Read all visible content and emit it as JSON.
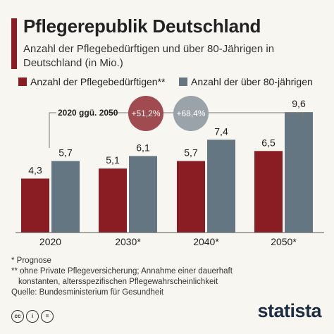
{
  "header": {
    "title": "Pflegerepublik Deutschland",
    "subtitle": "Anzahl der Pflegebedürftigen und über 80-Jährigen in Deutschland (in Mio.)"
  },
  "legend": {
    "items": [
      {
        "label": "Anzahl der Pflegebedürftigen**",
        "color": "#8a1c24"
      },
      {
        "label": "Anzahl der über 80-jährigen",
        "color": "#647682"
      }
    ]
  },
  "chart_data": {
    "type": "bar",
    "categories": [
      "2020",
      "2030*",
      "2040*",
      "2050*"
    ],
    "series": [
      {
        "name": "Anzahl der Pflegebedürftigen**",
        "values": [
          4.3,
          5.1,
          5.7,
          6.5
        ],
        "labels": [
          "4,3",
          "5,1",
          "5,7",
          "6,5"
        ],
        "color": "#8a1c24"
      },
      {
        "name": "Anzahl der über 80-jährigen",
        "values": [
          5.7,
          6.1,
          7.4,
          9.6
        ],
        "labels": [
          "5,7",
          "6,1",
          "7,4",
          "9,6"
        ],
        "color": "#647682"
      }
    ],
    "ylim": [
      0,
      10
    ],
    "annotation": {
      "label": "2020 ggü. 2050",
      "changes": [
        {
          "text": "+51,2%",
          "color": "#a04b50"
        },
        {
          "text": "+68,4%",
          "color": "#9aa3a9"
        }
      ]
    }
  },
  "footnotes": {
    "prognose": "*   Prognose",
    "note_line1": "** ohne Private Pflegeversicherung; Annahme einer dauerhaft",
    "note_line2": "konstanten, altersspezifischen Pflegewahrscheinlichkeit",
    "source": "Quelle: Bundesministerium für Gesundheit"
  },
  "footer": {
    "brand": "statista",
    "icons": [
      "cc-icon",
      "by-icon",
      "equals-icon"
    ]
  }
}
